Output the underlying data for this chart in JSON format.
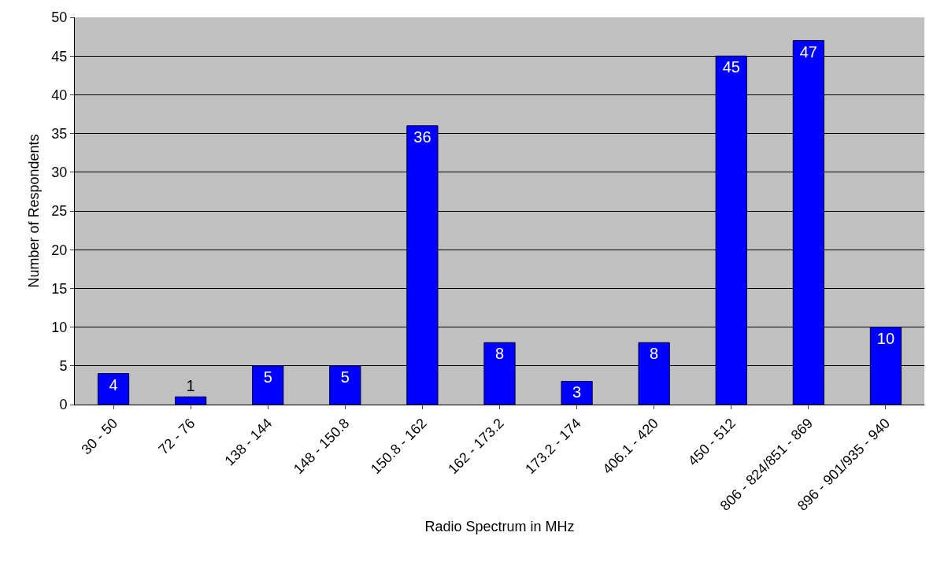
{
  "chart_data": {
    "type": "bar",
    "xlabel": "Radio Spectrum in MHz",
    "ylabel": "Number of Respondents",
    "categories": [
      "30 - 50",
      "72 - 76",
      "138 - 144",
      "148 - 150.8",
      "150.8 - 162",
      "162 - 173.2",
      "173.2 - 174",
      "406.1 - 420",
      "450 - 512",
      "806 - 824/851 - 869",
      "896 - 901/935 - 940"
    ],
    "values": [
      4,
      1,
      5,
      5,
      36,
      8,
      3,
      8,
      45,
      47,
      10
    ],
    "color": "#0000ff",
    "ylim": [
      0,
      50
    ],
    "yticks": [
      0,
      5,
      10,
      15,
      20,
      25,
      30,
      35,
      40,
      45,
      50
    ],
    "grid": "y",
    "data_labels": true,
    "legend": false
  }
}
